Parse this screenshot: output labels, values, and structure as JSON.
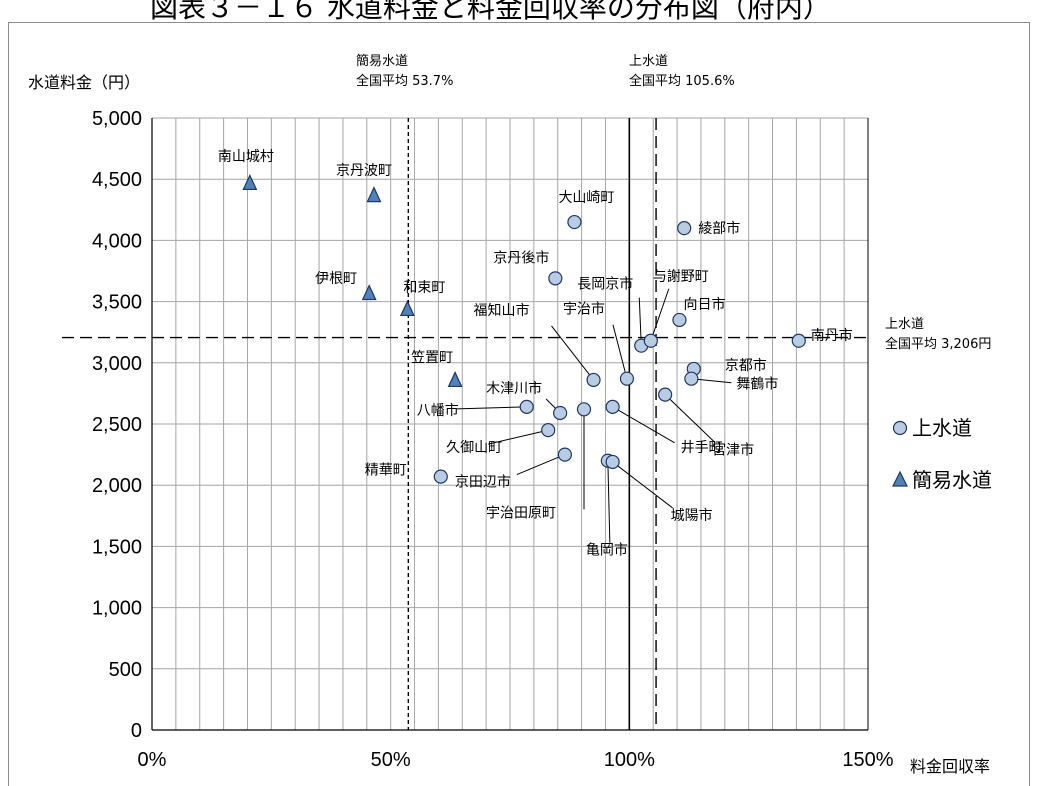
{
  "page_title": "図表３－１６ 水道料金と料金回収率の分布図（府内）",
  "chart_data": {
    "type": "scatter",
    "title": "図表３－１６ 水道料金と料金回収率の分布図（府内）",
    "xlabel": "料金回収率",
    "ylabel": "水道料金（円）",
    "xlim": [
      0,
      150
    ],
    "ylim": [
      0,
      5000
    ],
    "x_ticks": [
      "0%",
      "50%",
      "100%",
      "150%"
    ],
    "y_ticks": [
      "0",
      "500",
      "1,000",
      "1,500",
      "2,000",
      "2,500",
      "3,000",
      "3,500",
      "4,000",
      "4,500",
      "5,000"
    ],
    "grid": true,
    "legend_position": "right",
    "colors": {
      "marker_fill": "#b8cce4",
      "marker_stroke": "#1f3864",
      "triangle_fill": "#4f81bd"
    },
    "series": [
      {
        "name": "上水道",
        "marker": "circle",
        "points": [
          {
            "label": "大山崎町",
            "x": 88.5,
            "y": 4150
          },
          {
            "label": "綾部市",
            "x": 111.5,
            "y": 4100
          },
          {
            "label": "京丹後市",
            "x": 84.5,
            "y": 3690
          },
          {
            "label": "長岡京市",
            "x": 102.5,
            "y": 3140
          },
          {
            "label": "与謝野町",
            "x": 104.5,
            "y": 3180
          },
          {
            "label": "向日市",
            "x": 110.5,
            "y": 3350
          },
          {
            "label": "南丹市",
            "x": 135.5,
            "y": 3180
          },
          {
            "label": "福知山市",
            "x": 92.5,
            "y": 2860
          },
          {
            "label": "宇治市",
            "x": 99.5,
            "y": 2870
          },
          {
            "label": "京都市",
            "x": 113.5,
            "y": 2950
          },
          {
            "label": "舞鶴市",
            "x": 113.0,
            "y": 2870
          },
          {
            "label": "宮津市",
            "x": 107.5,
            "y": 2740
          },
          {
            "label": "木津川市",
            "x": 85.5,
            "y": 2590
          },
          {
            "label": "八幡市",
            "x": 78.5,
            "y": 2640
          },
          {
            "label": "宇治田原町",
            "x": 90.5,
            "y": 2620
          },
          {
            "label": "井手町",
            "x": 96.5,
            "y": 2640
          },
          {
            "label": "久御山町",
            "x": 83.0,
            "y": 2450
          },
          {
            "label": "京田辺市",
            "x": 86.5,
            "y": 2250
          },
          {
            "label": "亀岡市",
            "x": 95.5,
            "y": 2200
          },
          {
            "label": "城陽市",
            "x": 96.5,
            "y": 2190
          },
          {
            "label": "精華町",
            "x": 60.5,
            "y": 2070
          }
        ]
      },
      {
        "name": "簡易水道",
        "marker": "triangle",
        "points": [
          {
            "label": "南山城村",
            "x": 20.5,
            "y": 4470
          },
          {
            "label": "京丹波町",
            "x": 46.5,
            "y": 4370
          },
          {
            "label": "伊根町",
            "x": 45.5,
            "y": 3570
          },
          {
            "label": "和束町",
            "x": 53.5,
            "y": 3440
          },
          {
            "label": "笠置町",
            "x": 63.5,
            "y": 2860
          }
        ]
      }
    ],
    "reference_lines": [
      {
        "axis": "x",
        "value": 53.7,
        "style": "short-dash",
        "label_lines": [
          "簡易水道",
          "全国平均 53.7%"
        ]
      },
      {
        "axis": "x",
        "value": 100,
        "style": "solid",
        "label_lines": []
      },
      {
        "axis": "x",
        "value": 105.6,
        "style": "long-dash",
        "label_lines": [
          "上水道",
          "全国平均 105.6%"
        ]
      },
      {
        "axis": "y",
        "value": 3206,
        "style": "long-dash",
        "label_lines": [
          "上水道",
          "全国平均 3,206円"
        ]
      }
    ]
  }
}
